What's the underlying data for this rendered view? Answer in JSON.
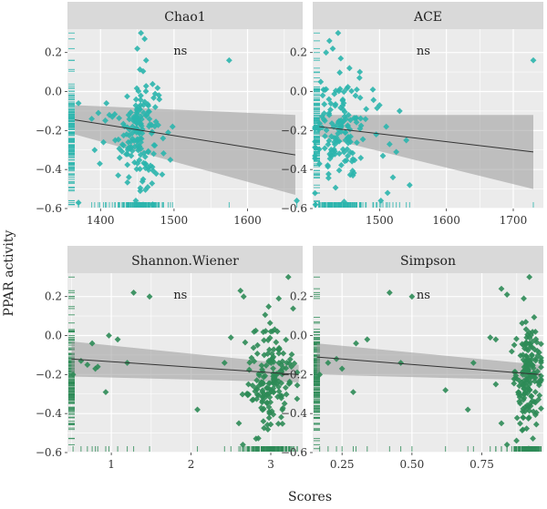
{
  "y_axis_label": "PPAR activity",
  "x_axis_label": "Scores",
  "colors": {
    "panel_bg": "#ebebeb",
    "grid": "#ffffff",
    "strip_bg": "#d9d9d9",
    "top_points": "#2bb5ad",
    "bottom_points": "#2e8b57",
    "band": "#999999",
    "fit_line": "#333333"
  },
  "chart_data": [
    {
      "type": "scatter",
      "title": "Chao1",
      "annotation": "ns",
      "point_color": "#2bb5ad",
      "xlim": [
        1355,
        1675
      ],
      "ylim": [
        -0.6,
        0.32
      ],
      "x_ticks": [
        1400,
        1500,
        1600
      ],
      "x_tick_labels": [
        "1400",
        "1500",
        "1600"
      ],
      "y_ticks": [
        -0.6,
        -0.4,
        -0.2,
        0.0,
        0.2
      ],
      "y_tick_labels": [
        "−0.6",
        "−0.4",
        "−0.2",
        "0.0",
        "0.2"
      ],
      "fit": {
        "x": [
          1365,
          1665
        ],
        "y": [
          -0.145,
          -0.325
        ],
        "band_upper": [
          -0.07,
          -0.12
        ],
        "band_lower": [
          -0.22,
          -0.53
        ]
      },
      "cluster": {
        "x_center": 1452,
        "x_spread": 13,
        "y_mean": -0.2,
        "y_spread": 0.14,
        "n": 150
      },
      "points": [
        [
          1370,
          -0.06
        ],
        [
          1370,
          -0.57
        ],
        [
          1388,
          -0.14
        ],
        [
          1392,
          -0.3
        ],
        [
          1397,
          -0.11
        ],
        [
          1399,
          -0.37
        ],
        [
          1404,
          -0.26
        ],
        [
          1408,
          -0.06
        ],
        [
          1412,
          -0.12
        ],
        [
          1416,
          -0.13
        ],
        [
          1420,
          -0.25
        ],
        [
          1424,
          -0.43
        ],
        [
          1426,
          -0.34
        ],
        [
          1480,
          -0.04
        ],
        [
          1485,
          -0.24
        ],
        [
          1492,
          -0.21
        ],
        [
          1495,
          -0.35
        ],
        [
          1498,
          -0.18
        ],
        [
          1455,
          0.3
        ],
        [
          1460,
          0.27
        ],
        [
          1450,
          0.22
        ],
        [
          1462,
          0.16
        ],
        [
          1448,
          -0.56
        ],
        [
          1454,
          -0.51
        ],
        [
          1458,
          -0.45
        ],
        [
          1575,
          0.16
        ],
        [
          1667,
          -0.56
        ]
      ]
    },
    {
      "type": "scatter",
      "title": "ACE",
      "annotation": "ns",
      "point_color": "#2bb5ad",
      "xlim": [
        1400,
        1745
      ],
      "ylim": [
        -0.6,
        0.32
      ],
      "x_ticks": [
        1500,
        1600,
        1700
      ],
      "x_tick_labels": [
        "1500",
        "1600",
        "1700"
      ],
      "y_ticks": [
        -0.6,
        -0.4,
        -0.2,
        0.0,
        0.2
      ],
      "y_tick_labels": [
        "−0.6",
        "−0.4",
        "−0.2",
        "0.0",
        "0.2"
      ],
      "fit": {
        "x": [
          1410,
          1730
        ],
        "y": [
          -0.18,
          -0.31
        ],
        "band_upper": [
          -0.12,
          -0.12
        ],
        "band_lower": [
          -0.23,
          -0.5
        ]
      },
      "cluster": {
        "x_center": 1440,
        "x_spread": 20,
        "y_mean": -0.2,
        "y_spread": 0.14,
        "n": 140
      },
      "points": [
        [
          1412,
          0.05
        ],
        [
          1415,
          -0.02
        ],
        [
          1420,
          0.2
        ],
        [
          1425,
          0.26
        ],
        [
          1430,
          0.22
        ],
        [
          1438,
          0.3
        ],
        [
          1442,
          0.17
        ],
        [
          1455,
          0.12
        ],
        [
          1470,
          0.07
        ],
        [
          1480,
          -0.09
        ],
        [
          1490,
          0.01
        ],
        [
          1495,
          -0.22
        ],
        [
          1500,
          -0.07
        ],
        [
          1505,
          -0.33
        ],
        [
          1510,
          -0.18
        ],
        [
          1515,
          -0.27
        ],
        [
          1520,
          -0.44
        ],
        [
          1525,
          -0.31
        ],
        [
          1530,
          -0.1
        ],
        [
          1540,
          -0.25
        ],
        [
          1545,
          -0.48
        ],
        [
          1502,
          -0.56
        ],
        [
          1512,
          -0.52
        ],
        [
          1730,
          0.16
        ]
      ]
    },
    {
      "type": "scatter",
      "title": "Shannon.Wiener",
      "annotation": "ns",
      "point_color": "#2e8b57",
      "xlim": [
        0.45,
        3.4
      ],
      "ylim": [
        -0.6,
        0.32
      ],
      "x_ticks": [
        1,
        2,
        3
      ],
      "x_tick_labels": [
        "1",
        "2",
        "3"
      ],
      "y_ticks": [
        -0.6,
        -0.4,
        -0.2,
        0.0,
        0.2
      ],
      "y_tick_labels": [
        "−0.6",
        "−0.4",
        "−0.2",
        "0.0",
        "0.2"
      ],
      "fit": {
        "x": [
          0.5,
          3.35
        ],
        "y": [
          -0.12,
          -0.2
        ],
        "band_upper": [
          -0.03,
          -0.15
        ],
        "band_lower": [
          -0.21,
          -0.24
        ]
      },
      "cluster": {
        "x_center": 3.0,
        "x_spread": 0.15,
        "y_mean": -0.22,
        "y_spread": 0.14,
        "n": 170
      },
      "points": [
        [
          0.52,
          -0.2
        ],
        [
          0.62,
          -0.13
        ],
        [
          0.7,
          -0.15
        ],
        [
          0.76,
          -0.04
        ],
        [
          0.8,
          -0.17
        ],
        [
          0.83,
          -0.16
        ],
        [
          0.93,
          -0.29
        ],
        [
          0.97,
          0.0
        ],
        [
          1.08,
          -0.02
        ],
        [
          1.2,
          -0.14
        ],
        [
          1.28,
          0.22
        ],
        [
          1.48,
          0.2
        ],
        [
          2.08,
          -0.38
        ],
        [
          2.42,
          -0.14
        ],
        [
          2.5,
          -0.01
        ],
        [
          2.62,
          0.23
        ],
        [
          2.66,
          0.2
        ],
        [
          2.72,
          -0.25
        ],
        [
          2.6,
          -0.45
        ],
        [
          2.65,
          -0.56
        ],
        [
          3.22,
          0.3
        ],
        [
          3.1,
          0.19
        ]
      ]
    },
    {
      "type": "scatter",
      "title": "Simpson",
      "annotation": "ns",
      "point_color": "#2e8b57",
      "xlim": [
        0.145,
        0.97
      ],
      "ylim": [
        -0.6,
        0.32
      ],
      "x_ticks": [
        0.25,
        0.5,
        0.75
      ],
      "x_tick_labels": [
        "0.25",
        "0.50",
        "0.75"
      ],
      "y_ticks": [
        -0.6,
        -0.4,
        -0.2,
        0.0,
        0.2
      ],
      "y_tick_labels": [
        "−0.6",
        "−0.4",
        "−0.2",
        "0.0",
        "0.2"
      ],
      "fit": {
        "x": [
          0.16,
          0.96
        ],
        "y": [
          -0.11,
          -0.2
        ],
        "band_upper": [
          -0.04,
          -0.15
        ],
        "band_lower": [
          -0.2,
          -0.23
        ]
      },
      "cluster": {
        "x_center": 0.915,
        "x_spread": 0.025,
        "y_mean": -0.22,
        "y_spread": 0.14,
        "n": 170
      },
      "points": [
        [
          0.17,
          -0.2
        ],
        [
          0.2,
          -0.14
        ],
        [
          0.23,
          -0.12
        ],
        [
          0.25,
          -0.17
        ],
        [
          0.29,
          -0.29
        ],
        [
          0.3,
          -0.04
        ],
        [
          0.34,
          -0.02
        ],
        [
          0.42,
          0.22
        ],
        [
          0.46,
          -0.14
        ],
        [
          0.5,
          0.2
        ],
        [
          0.62,
          -0.28
        ],
        [
          0.7,
          -0.38
        ],
        [
          0.72,
          -0.14
        ],
        [
          0.78,
          -0.01
        ],
        [
          0.8,
          -0.02
        ],
        [
          0.82,
          0.24
        ],
        [
          0.84,
          0.21
        ],
        [
          0.8,
          -0.25
        ],
        [
          0.82,
          -0.45
        ],
        [
          0.84,
          -0.56
        ],
        [
          0.92,
          0.3
        ],
        [
          0.9,
          0.19
        ]
      ]
    }
  ]
}
